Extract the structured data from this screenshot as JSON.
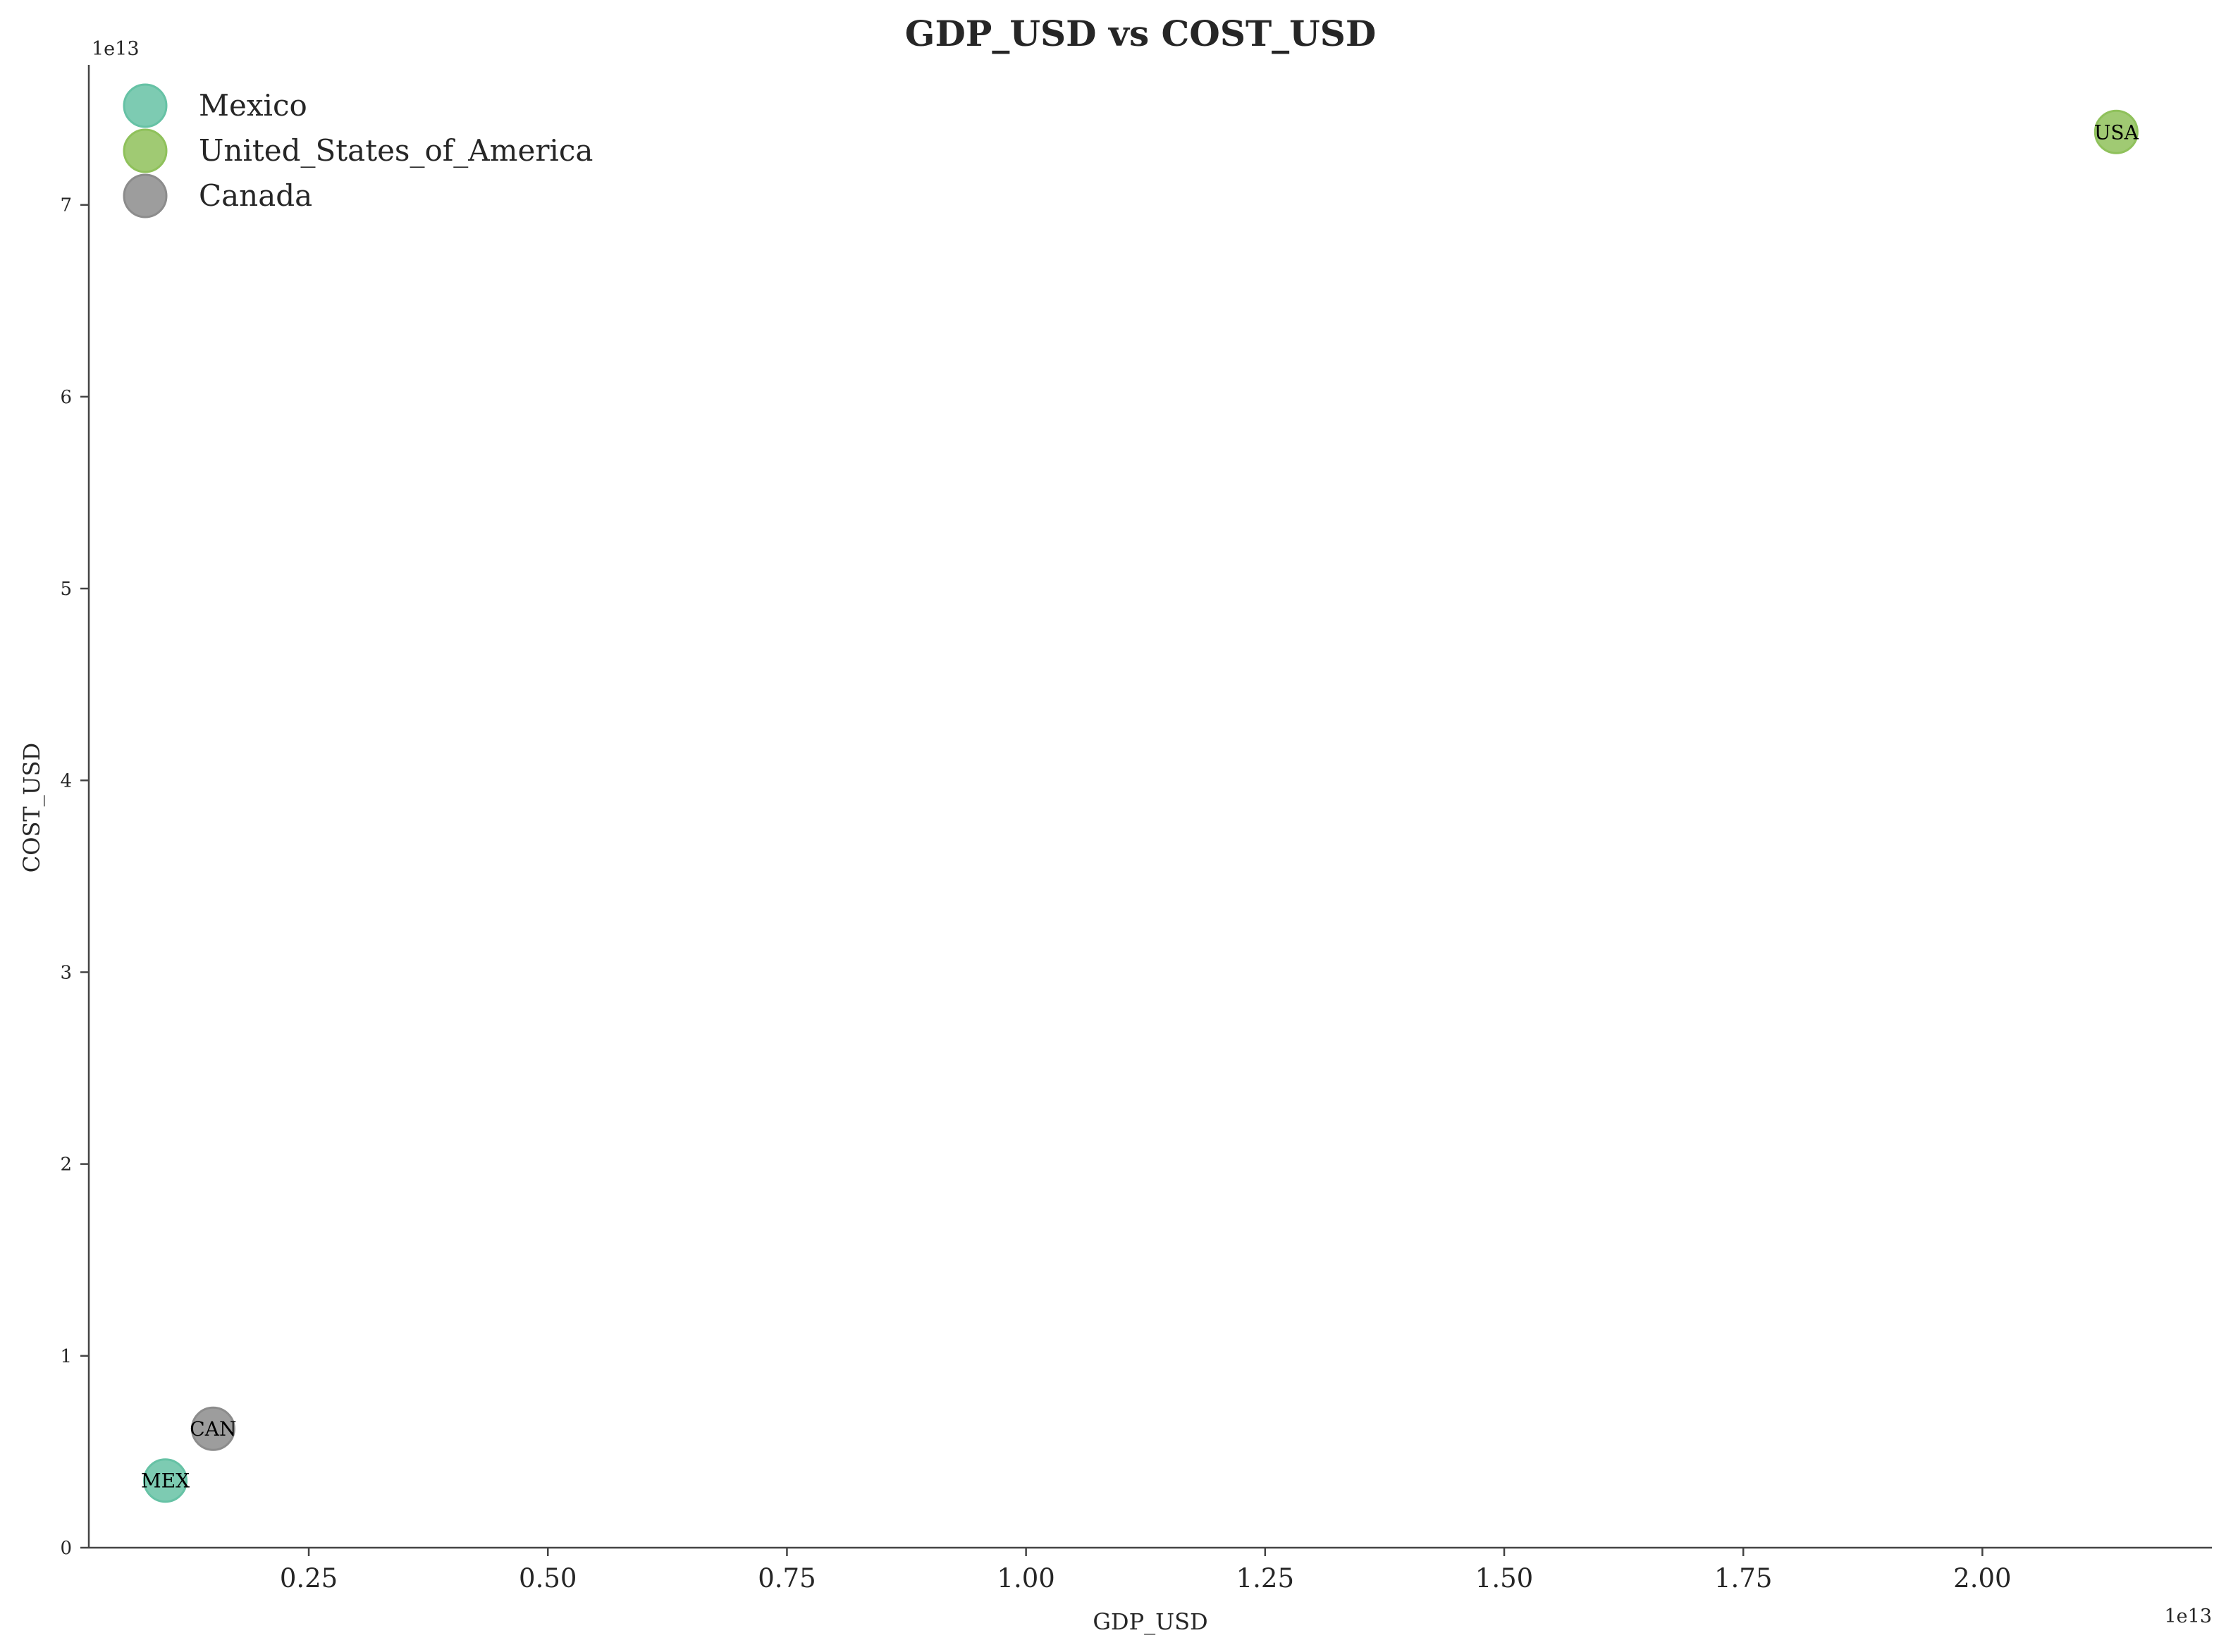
{
  "chart_data": {
    "type": "scatter",
    "title": "GDP_USD vs COST_USD",
    "xlabel": "GDP_USD",
    "ylabel": "COST_USD",
    "x_offset_label": "1e13",
    "y_offset_label": "1e13",
    "xlim": [
      0.02,
      2.24
    ],
    "ylim": [
      0,
      7.73
    ],
    "x_ticks": [
      0.25,
      0.5,
      0.75,
      1.0,
      1.25,
      1.5,
      1.75,
      2.0
    ],
    "x_tick_labels": [
      "0.25",
      "0.50",
      "0.75",
      "1.00",
      "1.25",
      "1.50",
      "1.75",
      "2.00"
    ],
    "y_ticks": [
      0,
      1,
      2,
      3,
      4,
      5,
      6,
      7
    ],
    "y_tick_labels": [
      "0",
      "1",
      "2",
      "3",
      "4",
      "5",
      "6",
      "7"
    ],
    "grid": false,
    "legend_position": "top-left",
    "series": [
      {
        "name": "Mexico",
        "color": "#66c2a5",
        "points": [
          {
            "x": 0.1,
            "y": 0.35,
            "label": "MEX"
          }
        ]
      },
      {
        "name": "United_States_of_America",
        "color": "#8fc15b",
        "points": [
          {
            "x": 2.14,
            "y": 7.38,
            "label": "USA"
          }
        ]
      },
      {
        "name": "Canada",
        "color": "#8c8c8c",
        "points": [
          {
            "x": 0.15,
            "y": 0.62,
            "label": "CAN"
          }
        ]
      }
    ]
  }
}
